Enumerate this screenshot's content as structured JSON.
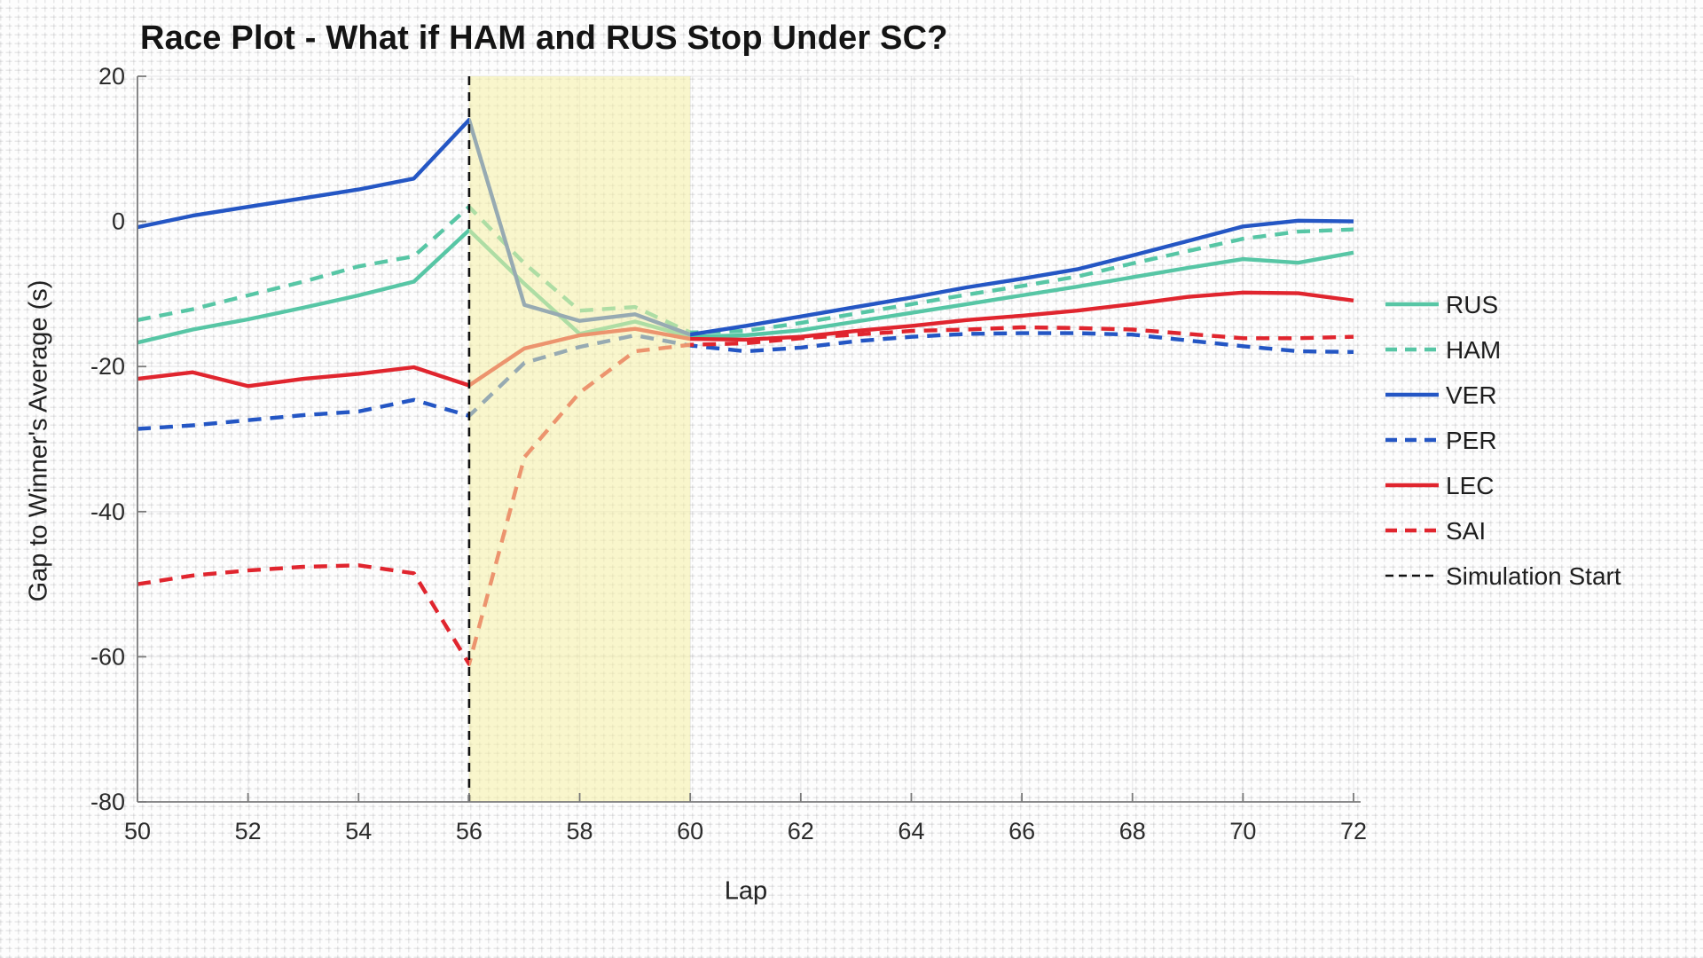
{
  "chart_data": {
    "type": "line",
    "title": "Race Plot - What if HAM and RUS Stop Under SC?",
    "xlabel": "Lap",
    "ylabel": "Gap to Winner's Average (s)",
    "xlim": [
      50,
      72
    ],
    "ylim": [
      -80,
      20
    ],
    "xticks": [
      50,
      52,
      54,
      56,
      58,
      60,
      62,
      64,
      66,
      68,
      70,
      72
    ],
    "yticks": [
      20,
      0,
      -20,
      -40,
      -60,
      -80
    ],
    "grid": true,
    "legend_position": "right-outside",
    "x": [
      50,
      51,
      52,
      53,
      54,
      55,
      56,
      57,
      58,
      59,
      60,
      61,
      62,
      63,
      64,
      65,
      66,
      67,
      68,
      69,
      70,
      71,
      72
    ],
    "series": [
      {
        "name": "RUS",
        "color": "#57c6a5",
        "line_style": "solid",
        "values": [
          -16.7,
          -14.9,
          -13.5,
          -11.9,
          -10.2,
          -8.3,
          -1.2,
          -8.6,
          -15.5,
          -13.8,
          -15.9,
          -15.7,
          -15.0,
          -13.8,
          -12.6,
          -11.4,
          -10.2,
          -9.0,
          -7.7,
          -6.4,
          -5.2,
          -5.7,
          -4.3
        ]
      },
      {
        "name": "HAM",
        "color": "#57c6a5",
        "line_style": "dashed",
        "values": [
          -13.6,
          -12.1,
          -10.2,
          -8.3,
          -6.2,
          -4.8,
          2.0,
          -5.8,
          -12.3,
          -11.8,
          -15.3,
          -15.1,
          -14.0,
          -12.7,
          -11.4,
          -10.1,
          -8.9,
          -7.6,
          -5.8,
          -4.1,
          -2.4,
          -1.4,
          -1.1
        ]
      },
      {
        "name": "VER",
        "color": "#2456c4",
        "line_style": "solid",
        "values": [
          -0.8,
          0.8,
          2.0,
          3.2,
          4.4,
          5.9,
          14.0,
          -11.5,
          -13.7,
          -12.8,
          -15.6,
          -14.4,
          -13.1,
          -11.8,
          -10.5,
          -9.1,
          -7.9,
          -6.6,
          -4.7,
          -2.7,
          -0.7,
          0.1,
          0.0
        ]
      },
      {
        "name": "PER",
        "color": "#2456c4",
        "line_style": "dashed",
        "values": [
          -28.6,
          -28.1,
          -27.4,
          -26.7,
          -26.2,
          -24.6,
          -26.8,
          -19.5,
          -17.3,
          -15.7,
          -17.1,
          -17.9,
          -17.4,
          -16.5,
          -15.9,
          -15.5,
          -15.4,
          -15.4,
          -15.6,
          -16.4,
          -17.2,
          -17.9,
          -18.0
        ]
      },
      {
        "name": "LEC",
        "color": "#e0252e",
        "line_style": "solid",
        "values": [
          -21.7,
          -20.8,
          -22.7,
          -21.7,
          -21.0,
          -20.1,
          -22.6,
          -17.5,
          -15.7,
          -14.8,
          -16.2,
          -16.3,
          -15.9,
          -15.1,
          -14.4,
          -13.6,
          -13.0,
          -12.3,
          -11.4,
          -10.4,
          -9.8,
          -9.9,
          -10.9
        ]
      },
      {
        "name": "SAI",
        "color": "#e0252e",
        "line_style": "dashed",
        "values": [
          -50.0,
          -48.8,
          -48.1,
          -47.6,
          -47.4,
          -48.5,
          -61.0,
          -32.5,
          -23.6,
          -17.9,
          -17.0,
          -16.8,
          -16.1,
          -15.6,
          -15.1,
          -14.9,
          -14.6,
          -14.7,
          -14.9,
          -15.5,
          -16.1,
          -16.1,
          -15.9
        ]
      }
    ],
    "sc_band": {
      "from_lap": 56,
      "to_lap": 60,
      "fill_rgb": [
        246,
        240,
        164
      ],
      "fill_opacity": 0.55
    },
    "reference_line": {
      "label": "Simulation Start",
      "lap": 56,
      "color": "#111111",
      "line_style": "dashed"
    }
  },
  "style": {
    "axis_color": "#7a7a7a",
    "grid_color": "rgba(90,90,100,0.10)",
    "tick_label_color": "#2b2b2b",
    "title_color": "#141414"
  }
}
